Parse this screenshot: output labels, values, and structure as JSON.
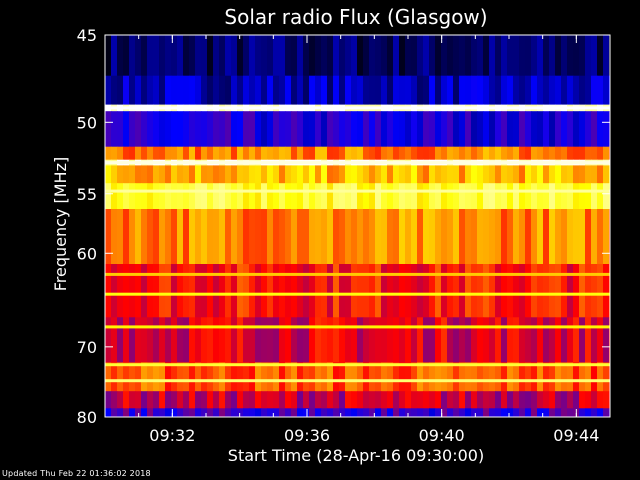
{
  "chart_data": {
    "type": "heatmap",
    "title": "Solar radio Flux (Glasgow)",
    "xlabel": "Start Time (28-Apr-16 09:30:00)",
    "ylabel": "Frequency [MHz]",
    "x_ticks": [
      "09:32",
      "09:36",
      "09:40",
      "09:44"
    ],
    "x_tick_minutes": [
      2,
      6,
      10,
      14
    ],
    "x_range_minutes": [
      0,
      15
    ],
    "y_ticks": [
      45,
      50,
      55,
      60,
      70,
      80
    ],
    "y_range_mhz": [
      45,
      80
    ],
    "y_scale": "reciprocal",
    "colormap": [
      "#000000",
      "#0000ff",
      "#ff0000",
      "#ffff00",
      "#ffffff"
    ],
    "bands": [
      {
        "f1": 45,
        "f2": 47.2,
        "level": 0.1
      },
      {
        "f1": 47.2,
        "f2": 48.9,
        "level": 0.18
      },
      {
        "f1": 48.9,
        "f2": 49.3,
        "level": 0.98
      },
      {
        "f1": 49.3,
        "f2": 51.6,
        "level": 0.25
      },
      {
        "f1": 51.6,
        "f2": 52.5,
        "level": 0.62
      },
      {
        "f1": 52.5,
        "f2": 52.9,
        "level": 0.97
      },
      {
        "f1": 52.9,
        "f2": 54.2,
        "level": 0.68
      },
      {
        "f1": 54.2,
        "f2": 56.2,
        "level": 0.8
      },
      {
        "f1": 56.2,
        "f2": 61.0,
        "level": 0.63
      },
      {
        "f1": 61.0,
        "f2": 66.5,
        "level": 0.52
      },
      {
        "f1": 66.5,
        "f2": 72.0,
        "level": 0.47
      },
      {
        "f1": 72.0,
        "f2": 76.0,
        "level": 0.58
      },
      {
        "f1": 76.0,
        "f2": 78.6,
        "level": 0.44
      },
      {
        "f1": 78.6,
        "f2": 80,
        "level": 0.3
      }
    ],
    "lines_mhz": [
      {
        "f": 49.1,
        "level": 1.0
      },
      {
        "f": 52.7,
        "level": 0.97
      },
      {
        "f": 54.8,
        "level": 0.9
      },
      {
        "f": 62.0,
        "level": 0.7
      },
      {
        "f": 64.0,
        "level": 0.76
      },
      {
        "f": 67.6,
        "level": 0.74
      },
      {
        "f": 72.3,
        "level": 0.8
      },
      {
        "f": 74.5,
        "level": 0.86
      }
    ],
    "updated_text": "Updated Thu Feb 22 01:36:02 2018"
  }
}
